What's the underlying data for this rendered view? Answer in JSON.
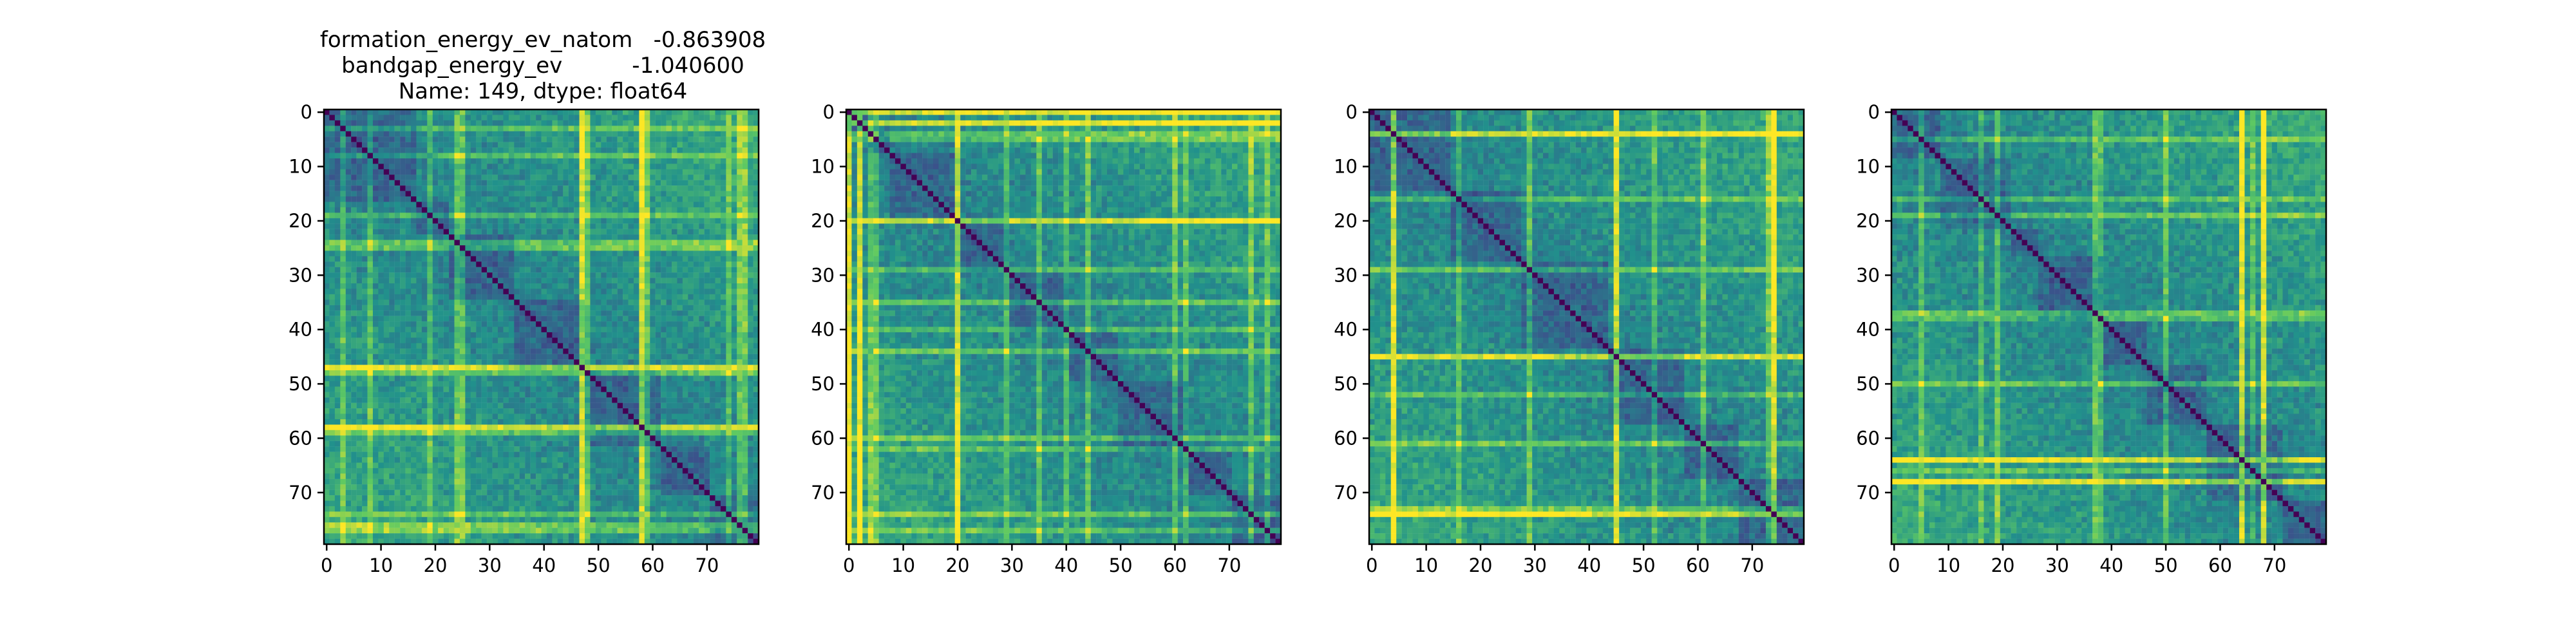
{
  "chart_data": {
    "type": "heatmap",
    "grid": false,
    "title_lines": [
      "formation_energy_ev_natom   -0.863908",
      "bandgap_energy_ev          -1.040600",
      "Name: 149, dtype: float64"
    ],
    "matrix_size": 80,
    "tick_values": [
      0,
      10,
      20,
      30,
      40,
      50,
      60,
      70
    ],
    "tick_labels": [
      "0",
      "10",
      "20",
      "30",
      "40",
      "50",
      "60",
      "70"
    ],
    "colormap": [
      "#440154",
      "#3b528b",
      "#21918c",
      "#5ec962",
      "#fde725"
    ],
    "panels": [
      {
        "name": "panel-1",
        "diagonal_value": 0,
        "blocks": [
          0,
          17,
          23,
          35,
          48,
          62,
          71,
          80
        ],
        "bright_rows": [
          24,
          25,
          47,
          48,
          58,
          59,
          76,
          77
        ],
        "bright_cols": [
          3,
          8,
          19,
          47,
          58,
          74
        ]
      },
      {
        "name": "panel-2",
        "diagonal_value": 0,
        "blocks": [
          0,
          4,
          8,
          20,
          30,
          41,
          50,
          63,
          71,
          80
        ],
        "bright_rows": [
          0,
          2,
          4,
          20,
          35,
          44,
          60,
          74
        ],
        "bright_cols": [
          0,
          2,
          5,
          20,
          29,
          40,
          62,
          77
        ]
      },
      {
        "name": "panel-3",
        "diagonal_value": 0,
        "blocks": [
          0,
          15,
          28,
          44,
          58,
          68,
          80
        ],
        "bright_rows": [
          4,
          29,
          45,
          61,
          73,
          74
        ],
        "bright_cols": [
          4,
          16,
          45,
          52,
          74
        ]
      },
      {
        "name": "panel-4",
        "diagonal_value": 0,
        "blocks": [
          0,
          9,
          22,
          27,
          39,
          47,
          58,
          72,
          80
        ],
        "bright_rows": [
          19,
          37,
          50,
          64,
          68
        ],
        "bright_cols": [
          5,
          16,
          38,
          64,
          66,
          68
        ]
      }
    ]
  }
}
